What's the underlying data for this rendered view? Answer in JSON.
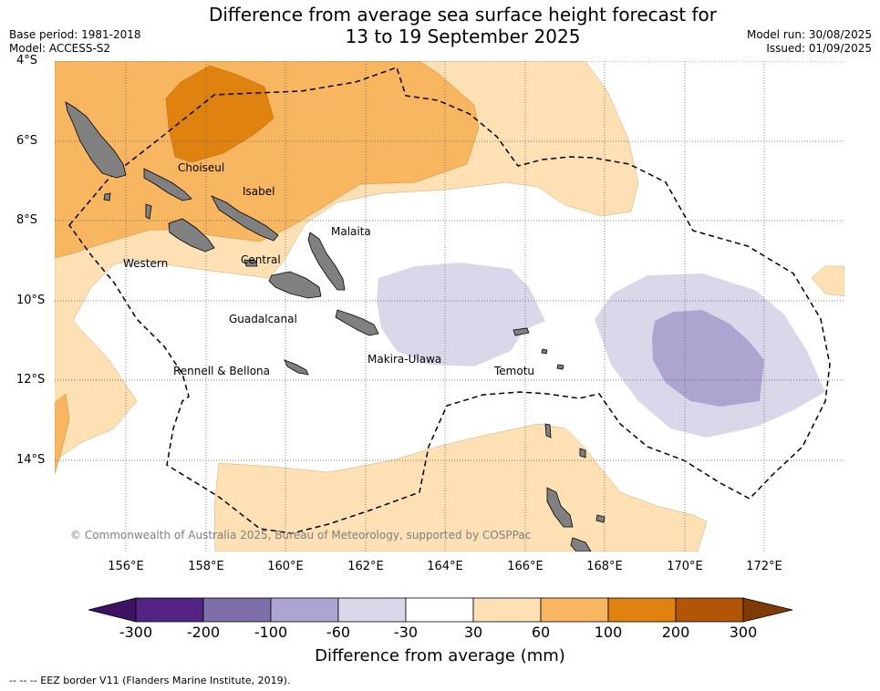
{
  "header": {
    "title_line1": "Difference from average sea surface height forecast for",
    "title_line2": "13 to 19 September 2025",
    "base_period": "Base period: 1981-2018",
    "model": "Model: ACCESS-S2",
    "model_run": "Model run: 30/08/2025",
    "issued": "Issued: 01/09/2025"
  },
  "map": {
    "lat_labels": [
      "4°S",
      "6°S",
      "8°S",
      "10°S",
      "12°S",
      "14°S"
    ],
    "lon_labels": [
      "156°E",
      "158°E",
      "160°E",
      "162°E",
      "164°E",
      "166°E",
      "168°E",
      "170°E",
      "172°E"
    ],
    "places": [
      "Choiseul",
      "Isabel",
      "Malaita",
      "Western",
      "Central",
      "Guadalcanal",
      "Makira-Ulawa",
      "Temotu",
      "Rennell & Bellona"
    ],
    "copyright": "© Commonwealth of Australia 2025, Bureau of Meteorology, supported by COSPPac",
    "land_color": "#808080",
    "eez_style": "dashed black"
  },
  "colorbar": {
    "ticks": [
      "-300",
      "-200",
      "-100",
      "-60",
      "-30",
      "30",
      "60",
      "100",
      "200",
      "300"
    ],
    "colors": [
      "#3f1263",
      "#532483",
      "#7e6eaa",
      "#ada5d0",
      "#d8d8ea",
      "#ffffff",
      "#fde0b3",
      "#f9b660",
      "#e0820f",
      "#b25507",
      "#7f3a06"
    ],
    "label": "Difference from average (mm)"
  },
  "footnote": "--  --  -- EEZ border V11 (Flanders Marine Institute, 2019)."
}
